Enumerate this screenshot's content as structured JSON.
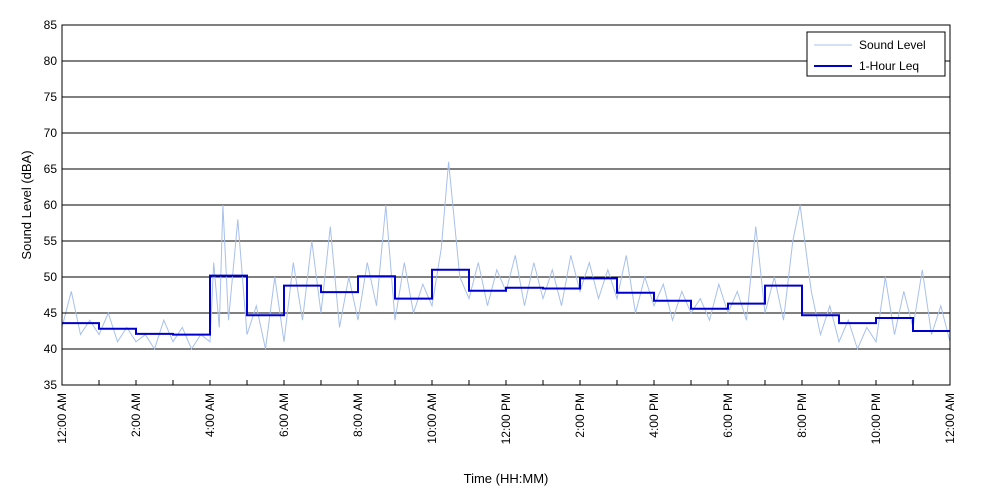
{
  "chart_data": {
    "type": "line",
    "title": "",
    "xlabel": "Time (HH:MM)",
    "ylabel": "Sound Level (dBA)",
    "x_unit": "hours",
    "xlim": [
      0,
      24
    ],
    "ylim": [
      35,
      85
    ],
    "y_ticks": [
      35,
      40,
      45,
      50,
      55,
      60,
      65,
      70,
      75,
      80,
      85
    ],
    "x_ticks": [
      0,
      2,
      4,
      6,
      8,
      10,
      12,
      14,
      16,
      18,
      20,
      22,
      24
    ],
    "x_tick_labels": [
      "12:00 AM",
      "2:00 AM",
      "4:00 AM",
      "6:00 AM",
      "8:00 AM",
      "10:00 AM",
      "12:00 PM",
      "2:00 PM",
      "4:00 PM",
      "6:00 PM",
      "8:00 PM",
      "10:00 PM",
      "12:00 AM"
    ],
    "grid": "horizontal",
    "legend_position": "top-right",
    "series": [
      {
        "name": "Sound Level",
        "style": "thin-line",
        "color": "#a8c0ec",
        "x": [
          0,
          0.25,
          0.5,
          0.75,
          1,
          1.25,
          1.5,
          1.75,
          2,
          2.25,
          2.5,
          2.75,
          3,
          3.25,
          3.5,
          3.75,
          4,
          4.1,
          4.25,
          4.35,
          4.5,
          4.75,
          5,
          5.25,
          5.5,
          5.75,
          6,
          6.25,
          6.5,
          6.75,
          7,
          7.25,
          7.5,
          7.75,
          8,
          8.25,
          8.5,
          8.75,
          9,
          9.25,
          9.5,
          9.75,
          10,
          10.25,
          10.45,
          10.75,
          11,
          11.25,
          11.5,
          11.75,
          12,
          12.25,
          12.5,
          12.75,
          13,
          13.25,
          13.5,
          13.75,
          14,
          14.25,
          14.5,
          14.75,
          15,
          15.25,
          15.5,
          15.75,
          16,
          16.25,
          16.5,
          16.75,
          17,
          17.25,
          17.5,
          17.75,
          18,
          18.25,
          18.5,
          18.75,
          19,
          19.25,
          19.5,
          19.75,
          19.95,
          20.25,
          20.5,
          20.75,
          21,
          21.25,
          21.5,
          21.75,
          22,
          22.25,
          22.5,
          22.75,
          23,
          23.25,
          23.5,
          23.75,
          24
        ],
        "y": [
          43,
          48,
          42,
          44,
          42,
          45,
          41,
          43,
          41,
          42,
          40,
          44,
          41,
          43,
          40,
          42,
          41,
          52,
          43,
          60,
          44,
          58,
          42,
          46,
          40,
          50,
          41,
          52,
          44,
          55,
          45,
          57,
          43,
          50,
          44,
          52,
          46,
          60,
          44,
          52,
          45,
          49,
          46,
          54,
          66,
          50,
          47,
          52,
          46,
          51,
          48,
          53,
          46,
          52,
          47,
          51,
          46,
          53,
          48,
          52,
          47,
          51,
          47,
          53,
          45,
          50,
          46,
          49,
          44,
          48,
          45,
          47,
          44,
          49,
          45,
          48,
          44,
          57,
          45,
          50,
          44,
          55,
          60,
          48,
          42,
          46,
          41,
          44,
          40,
          43,
          41,
          50,
          42,
          48,
          43,
          51,
          42,
          46,
          41
        ]
      },
      {
        "name": "1-Hour Leq",
        "style": "step",
        "color": "#0000cc",
        "hours": [
          0,
          1,
          2,
          3,
          4,
          5,
          6,
          7,
          8,
          9,
          10,
          11,
          12,
          13,
          14,
          15,
          16,
          17,
          18,
          19,
          20,
          21,
          22,
          23
        ],
        "values": [
          43.6,
          42.8,
          42.1,
          42.0,
          50.2,
          44.7,
          48.8,
          47.9,
          50.1,
          47.0,
          51.0,
          48.1,
          48.5,
          48.4,
          49.8,
          47.8,
          46.7,
          45.6,
          46.3,
          48.8,
          44.7,
          43.6,
          44.3,
          42.5
        ]
      }
    ]
  }
}
